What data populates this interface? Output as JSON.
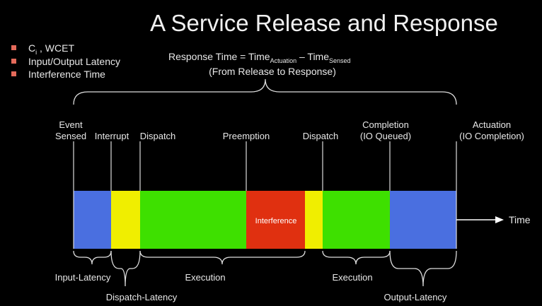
{
  "header": {
    "title": "A Service Release and Response"
  },
  "bullets": [
    {
      "text": "C",
      "sub": "i",
      "rest": " , WCET"
    },
    {
      "text": "Input/Output Latency"
    },
    {
      "text": "Interference Time"
    }
  ],
  "formula": {
    "text": "Response Time = Time",
    "sub1": "Actuation",
    "mid": " – Time",
    "sub2": "Sensed",
    "note": "(From Release to Response)"
  },
  "events": [
    {
      "lines": [
        "Event",
        "Sensed"
      ]
    },
    {
      "lines": [
        "Interrupt"
      ]
    },
    {
      "lines": [
        "Dispatch"
      ]
    },
    {
      "lines": [
        "Preemption"
      ]
    },
    {
      "lines": [
        "Dispatch"
      ]
    },
    {
      "lines": [
        "Completion",
        "(IO Queued)"
      ]
    },
    {
      "lines": [
        "Actuation",
        "(IO Completion)"
      ]
    }
  ],
  "segments": {
    "interference": "Interference"
  },
  "axis": {
    "label": "Time"
  },
  "spans": [
    "Input-Latency",
    "Dispatch-Latency",
    "Execution",
    "Execution",
    "Output-Latency"
  ]
}
